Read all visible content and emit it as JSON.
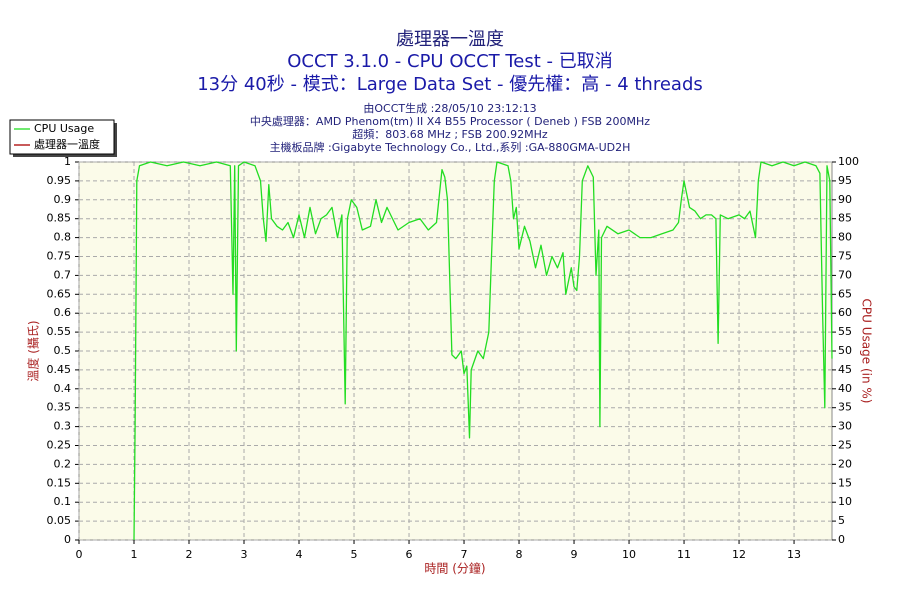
{
  "chart_data": {
    "type": "line",
    "title": "處理器一溫度",
    "subtitle": [
      "OCCT 3.1.0 - CPU OCCT Test - 已取消",
      "13分 40秒 - 模式：Large Data Set - 優先權：高 - 4 threads"
    ],
    "info": [
      "由OCCT生成 :28/05/10 23:12:13",
      "中央處理器：AMD Phenom(tm) II X4 B55 Processor ( Deneb ) FSB 200MHz",
      "超頻：803.68 MHz ; FSB 200.92MHz",
      "主機板品牌 :Gigabyte Technology Co., Ltd.,系列 :GA-880GMA-UD2H"
    ],
    "x_label": "時間 (分鐘)",
    "y_label": "溫度 (攝氏)",
    "y2_label": "CPU Usage (in %)",
    "xlim": [
      0,
      13.69
    ],
    "xticks": [
      0,
      1,
      2,
      3,
      4,
      5,
      6,
      7,
      8,
      9,
      10,
      11,
      12,
      13
    ],
    "ylim": [
      0,
      1
    ],
    "yticks": [
      0,
      0.05,
      0.1,
      0.15,
      0.2,
      0.25,
      0.3,
      0.35,
      0.4,
      0.45,
      0.5,
      0.55,
      0.6,
      0.65,
      0.7,
      0.75,
      0.8,
      0.85,
      0.9,
      0.95,
      1
    ],
    "y2lim": [
      0,
      100
    ],
    "y2ticks": [
      0,
      5,
      10,
      15,
      20,
      25,
      30,
      35,
      40,
      45,
      50,
      55,
      60,
      65,
      70,
      75,
      80,
      85,
      90,
      95,
      100
    ],
    "grid": true,
    "legend": "top-left",
    "x": [
      1.0,
      1.02,
      1.05,
      1.1,
      1.3,
      1.6,
      1.9,
      2.2,
      2.5,
      2.75,
      2.8,
      2.83,
      2.86,
      2.9,
      3.0,
      3.2,
      3.3,
      3.35,
      3.4,
      3.45,
      3.5,
      3.6,
      3.7,
      3.8,
      3.9,
      4.0,
      4.1,
      4.2,
      4.3,
      4.4,
      4.5,
      4.6,
      4.7,
      4.78,
      4.84,
      4.88,
      4.95,
      5.05,
      5.15,
      5.3,
      5.4,
      5.5,
      5.6,
      5.8,
      6.0,
      6.2,
      6.35,
      6.5,
      6.6,
      6.65,
      6.7,
      6.78,
      6.85,
      6.95,
      7.0,
      7.05,
      7.08,
      7.1,
      7.13,
      7.25,
      7.35,
      7.45,
      7.5,
      7.55,
      7.6,
      7.8,
      7.85,
      7.9,
      7.95,
      8.0,
      8.1,
      8.2,
      8.3,
      8.4,
      8.5,
      8.6,
      8.7,
      8.8,
      8.85,
      8.95,
      9.0,
      9.05,
      9.1,
      9.15,
      9.25,
      9.35,
      9.4,
      9.45,
      9.47,
      9.5,
      9.6,
      9.8,
      10.0,
      10.2,
      10.4,
      10.6,
      10.8,
      10.9,
      10.95,
      11.0,
      11.1,
      11.2,
      11.3,
      11.4,
      11.5,
      11.58,
      11.62,
      11.66,
      11.8,
      12.0,
      12.1,
      12.2,
      12.3,
      12.35,
      12.4,
      12.6,
      12.8,
      13.0,
      13.2,
      13.4,
      13.47,
      13.52,
      13.56,
      13.6,
      13.65,
      13.69
    ],
    "series": [
      {
        "name": "CPU Usage",
        "color": "#22dd22",
        "axis": "y2",
        "values": [
          0,
          30,
          95,
          99,
          100,
          99,
          100,
          99,
          100,
          99,
          65,
          99,
          50,
          99,
          100,
          99,
          95,
          85,
          79,
          94,
          85,
          83,
          82,
          84,
          80,
          86,
          80,
          88,
          81,
          85,
          86,
          88,
          80,
          86,
          36,
          85,
          90,
          88,
          82,
          83,
          90,
          84,
          88,
          82,
          84,
          85,
          82,
          84,
          98,
          96,
          90,
          49,
          48,
          50,
          44,
          46,
          35,
          27,
          45,
          50,
          48,
          55,
          75,
          95,
          100,
          99,
          95,
          85,
          88,
          77,
          83,
          79,
          72,
          78,
          70,
          75,
          72,
          76,
          65,
          72,
          67,
          66,
          75,
          95,
          99,
          96,
          70,
          82,
          30,
          80,
          83,
          81,
          82,
          80,
          80,
          81,
          82,
          84,
          90,
          95,
          88,
          87,
          85,
          86,
          86,
          85,
          52,
          86,
          85,
          86,
          85,
          87,
          80,
          95,
          100,
          99,
          100,
          99,
          100,
          99,
          97,
          60,
          35,
          99,
          95,
          48
        ]
      },
      {
        "name": "處理器一溫度",
        "color": "#aa0000",
        "axis": "y",
        "values": [
          null,
          null,
          null,
          null,
          null,
          null,
          null,
          null,
          null,
          null,
          null,
          null,
          null,
          null,
          null,
          null,
          null,
          null,
          null,
          null,
          null,
          null,
          null,
          null,
          null,
          null,
          null,
          null,
          null,
          null,
          null,
          null,
          null,
          null,
          null,
          null,
          null,
          null,
          null,
          null,
          null,
          null,
          null,
          null,
          null,
          null,
          null,
          null,
          null,
          null,
          null,
          null,
          null,
          null,
          null,
          null,
          null,
          null,
          null,
          null,
          null,
          null,
          null,
          null,
          null,
          null,
          null,
          null,
          null,
          null,
          null,
          null,
          null,
          null,
          null,
          null,
          null,
          null,
          null,
          null,
          null,
          null,
          null,
          null,
          null,
          null,
          null,
          null,
          null,
          null,
          null,
          null,
          null,
          null,
          null,
          null,
          null,
          null,
          null,
          null,
          null,
          null,
          null,
          null,
          null,
          null,
          null,
          null,
          null,
          null,
          null,
          null,
          null,
          null,
          null,
          null,
          null,
          null,
          null,
          null,
          null,
          null,
          null,
          null,
          null,
          null
        ]
      }
    ]
  }
}
